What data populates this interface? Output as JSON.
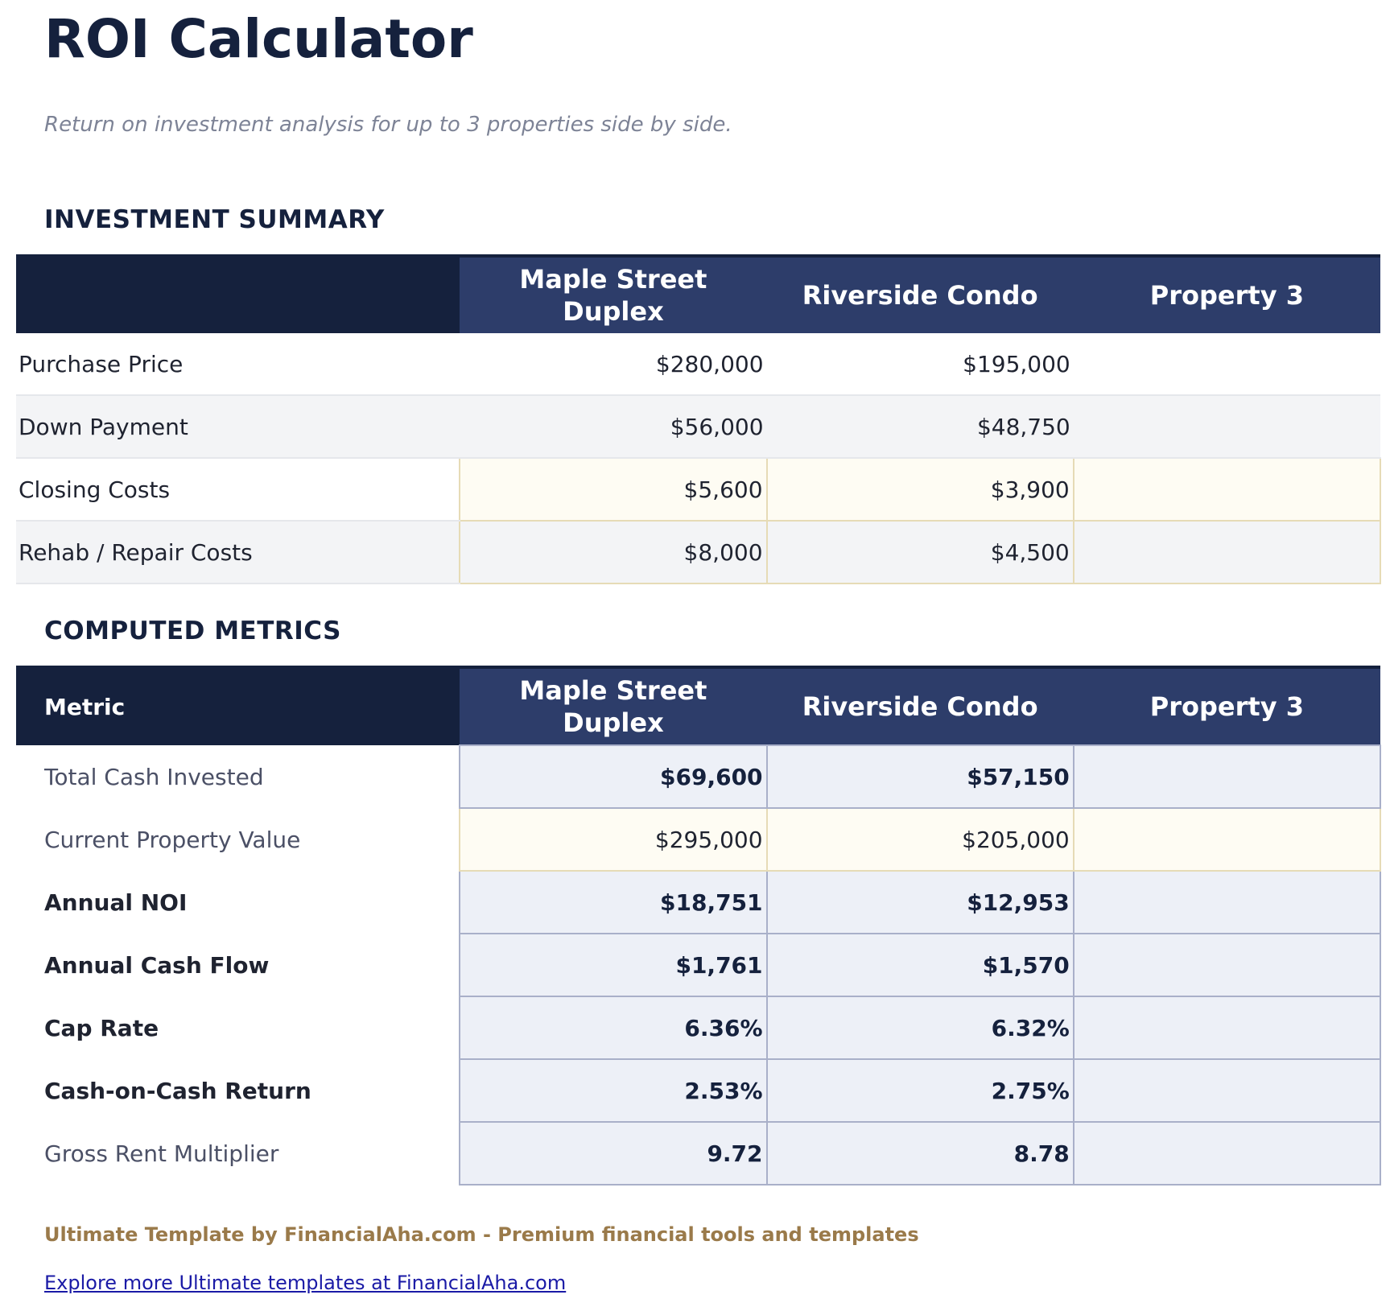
{
  "title": "ROI Calculator",
  "subtitle": "Return on investment analysis for up to 3 properties side by side.",
  "investment_summary": {
    "heading": "INVESTMENT SUMMARY",
    "columns": [
      "",
      "Maple Street Duplex",
      "Riverside Condo",
      "Property 3"
    ],
    "rows": [
      {
        "label": "Purchase Price",
        "values": [
          "$280,000",
          "$195,000",
          ""
        ]
      },
      {
        "label": "Down Payment",
        "values": [
          "$56,000",
          "$48,750",
          ""
        ]
      },
      {
        "label": "Closing Costs",
        "values": [
          "$5,600",
          "$3,900",
          ""
        ]
      },
      {
        "label": "Rehab / Repair Costs",
        "values": [
          "$8,000",
          "$4,500",
          ""
        ]
      }
    ]
  },
  "computed_metrics": {
    "heading": "COMPUTED METRICS",
    "columns": [
      "Metric",
      "Maple Street Duplex",
      "Riverside Condo",
      "Property 3"
    ],
    "rows": [
      {
        "label": "Total Cash Invested",
        "values": [
          "$69,600",
          "$57,150",
          ""
        ]
      },
      {
        "label": "Current Property Value",
        "values": [
          "$295,000",
          "$205,000",
          ""
        ]
      },
      {
        "label": "Annual NOI",
        "values": [
          "$18,751",
          "$12,953",
          ""
        ]
      },
      {
        "label": "Annual Cash Flow",
        "values": [
          "$1,761",
          "$1,570",
          ""
        ]
      },
      {
        "label": "Cap Rate",
        "values": [
          "6.36%",
          "6.32%",
          ""
        ]
      },
      {
        "label": "Cash-on-Cash Return",
        "values": [
          "2.53%",
          "2.75%",
          ""
        ]
      },
      {
        "label": "Gross Rent Multiplier",
        "values": [
          "9.72",
          "8.78",
          ""
        ]
      }
    ]
  },
  "footer": {
    "credit": "Ultimate Template by FinancialAha.com - Premium financial tools and templates",
    "link": "Explore more Ultimate templates at FinancialAha.com"
  },
  "colors": {
    "navy": "#15213d",
    "header_blue": "#2d3d6a",
    "input_fill": "#fefcf3",
    "calc_fill": "#edf0f7",
    "footer_gold": "#9a7a4a"
  }
}
